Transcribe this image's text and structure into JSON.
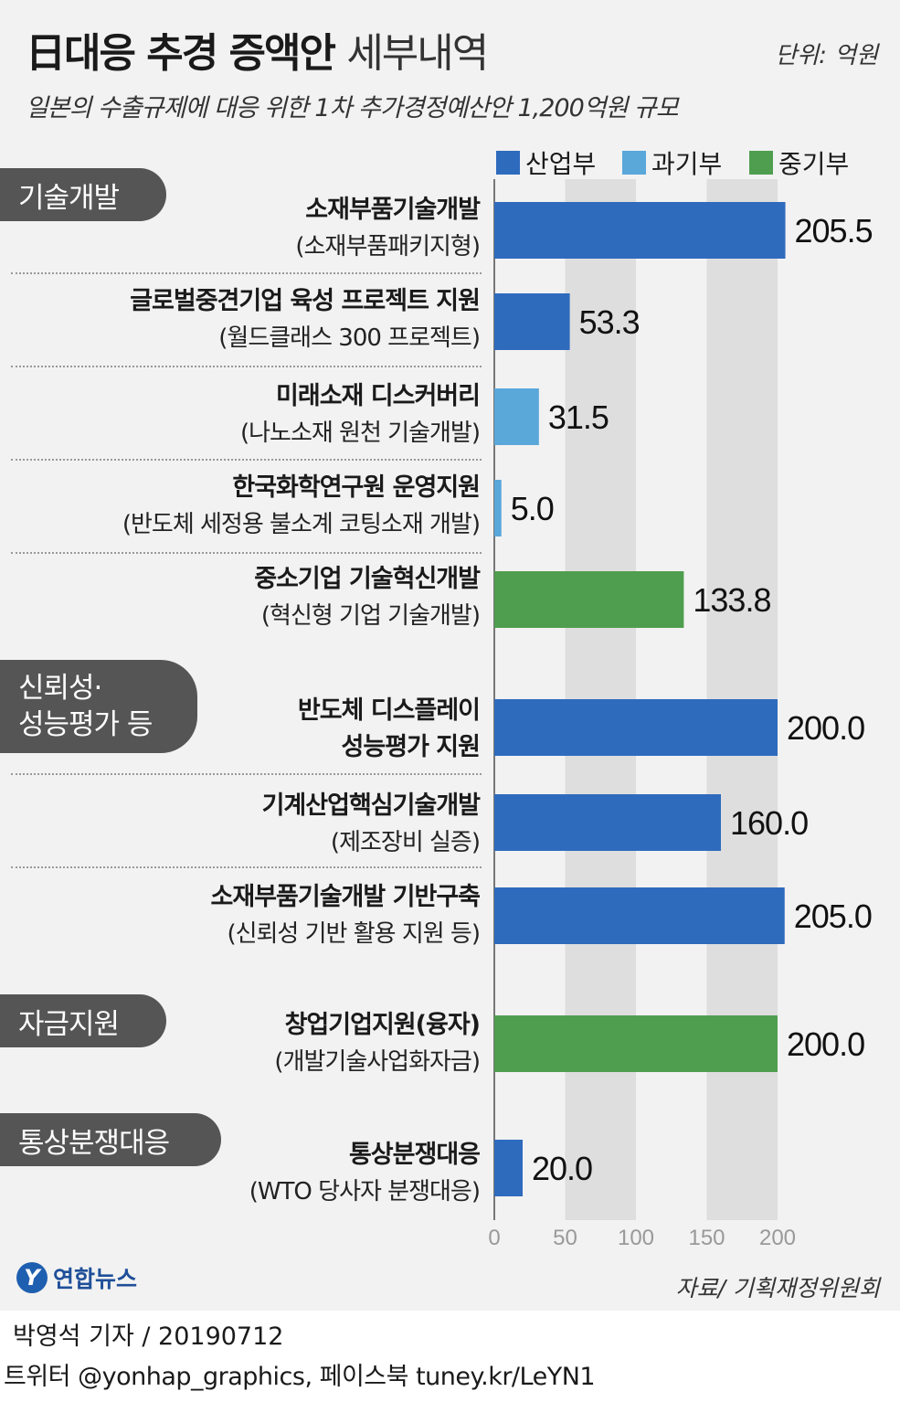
{
  "header": {
    "title_bold": "日대응 추경 증액안",
    "title_light": "세부내역",
    "unit": "단위: 억원",
    "subtitle": "일본의 수출규제에 대응 위한 1차 추가경정예산안 1,200억원 규모"
  },
  "categories": [
    {
      "line1": "기술개발",
      "line2": ""
    },
    {
      "line1": "신뢰성·",
      "line2": "성능평가 등"
    },
    {
      "line1": "자금지원",
      "line2": ""
    },
    {
      "line1": "통상분쟁대응",
      "line2": ""
    }
  ],
  "colors": {
    "산업부": "#2f6bbd",
    "과기부": "#5aa7da",
    "중기부": "#4f9e4f",
    "band": "#dedede",
    "panel": "#f2f2f2"
  },
  "chart_data": {
    "type": "bar",
    "orientation": "horizontal",
    "title": "日대응 추경 증액안 세부내역",
    "unit": "억원",
    "xlim": [
      0,
      200
    ],
    "x_ticks": [
      "0",
      "50",
      "100",
      "150",
      "200"
    ],
    "legend": [
      "산업부",
      "과기부",
      "중기부"
    ],
    "legend_position": "top-right",
    "rows": [
      {
        "name": "소재부품기술개발",
        "sub": "(소재부품패키지형)",
        "value": 205.5,
        "label": "205.5",
        "ministry": "산업부"
      },
      {
        "name": "글로벌중견기업 육성 프로젝트 지원",
        "sub": "(월드클래스 300 프로젝트)",
        "value": 53.3,
        "label": "53.3",
        "ministry": "산업부"
      },
      {
        "name": "미래소재 디스커버리",
        "sub": "(나노소재 원천 기술개발)",
        "value": 31.5,
        "label": "31.5",
        "ministry": "과기부"
      },
      {
        "name": "한국화학연구원 운영지원",
        "sub": "(반도체 세정용 불소계 코팅소재 개발)",
        "value": 5.0,
        "label": "5.0",
        "ministry": "과기부"
      },
      {
        "name": "중소기업 기술혁신개발",
        "sub": "(혁신형 기업 기술개발)",
        "value": 133.8,
        "label": "133.8",
        "ministry": "중기부"
      },
      {
        "name": "반도체 디스플레이",
        "sub": "성능평가 지원",
        "value": 200.0,
        "label": "200.0",
        "ministry": "산업부"
      },
      {
        "name": "기계산업핵심기술개발",
        "sub": "(제조장비 실증)",
        "value": 160.0,
        "label": "160.0",
        "ministry": "산업부"
      },
      {
        "name": "소재부품기술개발 기반구축",
        "sub": "(신뢰성 기반 활용 지원 등)",
        "value": 205.0,
        "label": "205.0",
        "ministry": "산업부"
      },
      {
        "name": "창업기업지원(융자)",
        "sub": "(개발기술사업화자금)",
        "value": 200.0,
        "label": "200.0",
        "ministry": "중기부"
      },
      {
        "name": "통상분쟁대응",
        "sub": "(WTO 당사자 분쟁대응)",
        "value": 20.0,
        "label": "20.0",
        "ministry": "산업부"
      }
    ]
  },
  "footer": {
    "logo_mark": "Y",
    "logo_text": "연합뉴스",
    "source": "자료/ 기획재정위원회",
    "byline": "박영석 기자 /  20190712",
    "social": "트위터 @yonhap_graphics, 페이스북 tuney.kr/LeYN1"
  }
}
